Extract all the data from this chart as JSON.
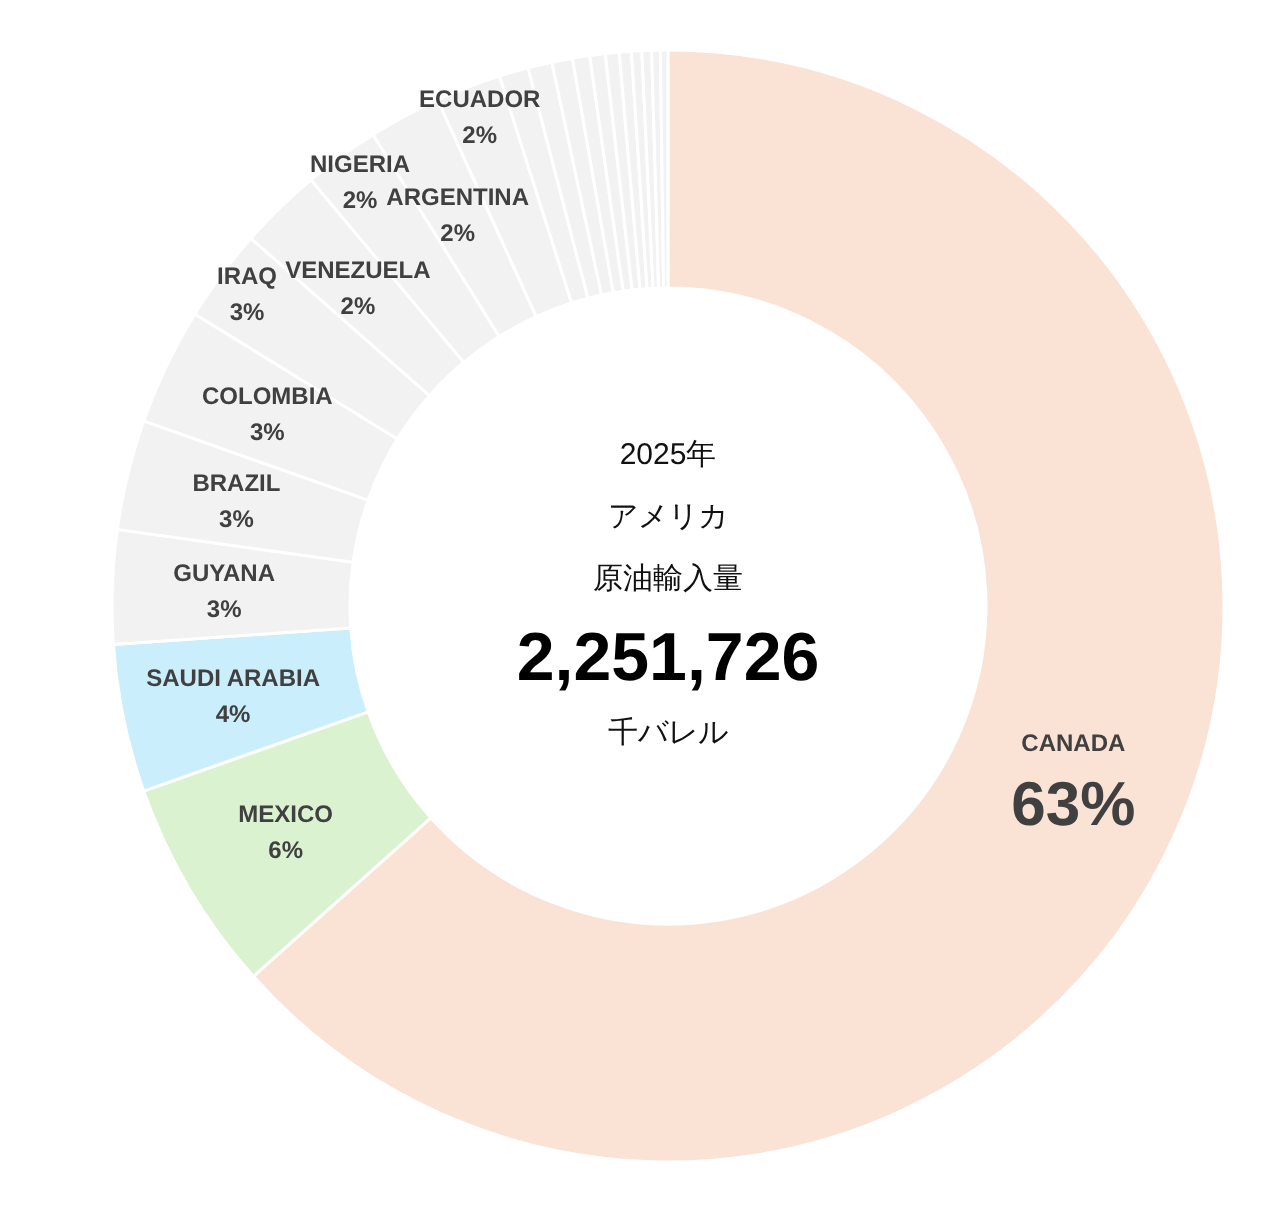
{
  "chart_data": {
    "type": "donut",
    "categories": [
      "CANADA",
      "MEXICO",
      "SAUDI ARABIA",
      "GUYANA",
      "BRAZIL",
      "COLOMBIA",
      "IRAQ",
      "VENEZUELA",
      "NIGERIA",
      "ARGENTINA",
      "ECUADOR",
      null,
      null,
      null,
      null,
      null,
      null,
      null,
      null,
      null,
      null,
      null
    ],
    "values": [
      63.4,
      6.2,
      4.3,
      3.3,
      3.2,
      3.4,
      2.7,
      2.4,
      2.2,
      2.1,
      1.9,
      0.85,
      0.7,
      0.6,
      0.5,
      0.45,
      0.4,
      0.35,
      0.3,
      0.28,
      0.25,
      0.22
    ],
    "value_labels": [
      "63%",
      "6%",
      "4%",
      "3%",
      "3%",
      "3%",
      "3%",
      "2%",
      "2%",
      "2%",
      "2%",
      null,
      null,
      null,
      null,
      null,
      null,
      null,
      null,
      null,
      null,
      null
    ],
    "colors": [
      "#fae2d5",
      "#daf2d0",
      "#caeefb",
      "#f2f2f2",
      "#f2f2f2",
      "#f2f2f2",
      "#f2f2f2",
      "#f2f2f2",
      "#f2f2f2",
      "#f2f2f2",
      "#f2f2f2",
      "#f2f2f2",
      "#f2f2f2",
      "#f2f2f2",
      "#f2f2f2",
      "#f2f2f2",
      "#f2f2f2",
      "#f2f2f2",
      "#f2f2f2",
      "#f2f2f2",
      "#f2f2f2",
      "#f2f2f2"
    ],
    "annotations": [
      "2025年",
      "アメリカ",
      "原油輸入量",
      "2,251,726",
      "千バレル"
    ]
  }
}
